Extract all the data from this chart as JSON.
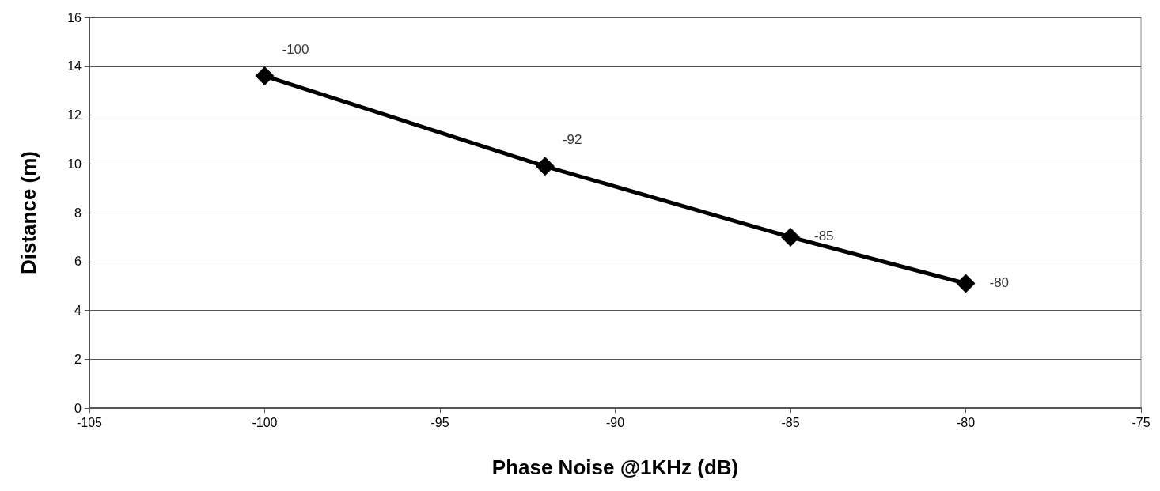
{
  "chart_data": {
    "type": "line",
    "xlabel": "Phase Noise @1KHz (dB)",
    "ylabel": "Distance (m)",
    "x": [
      -100,
      -92,
      -85,
      -80
    ],
    "series": [
      {
        "color": "#000000",
        "values": [
          13.6,
          9.9,
          7.0,
          5.1
        ]
      }
    ],
    "annotations": [
      {
        "text": "-100",
        "x": -100,
        "y": 13.6
      },
      {
        "text": "-92",
        "x": -92,
        "y": 9.9
      },
      {
        "text": "-85",
        "x": -85,
        "y": 7.0
      },
      {
        "text": "-80",
        "x": -80,
        "y": 5.1
      }
    ],
    "xlim": [
      -105,
      -75
    ],
    "xticks": [
      -105,
      -100,
      -95,
      -90,
      -85,
      -80,
      -75
    ],
    "ylim": [
      0,
      16
    ],
    "yticks": [
      0,
      2,
      4,
      6,
      8,
      10,
      12,
      14,
      16
    ],
    "grid": "y",
    "marker": "diamond",
    "line_style": "solid"
  }
}
